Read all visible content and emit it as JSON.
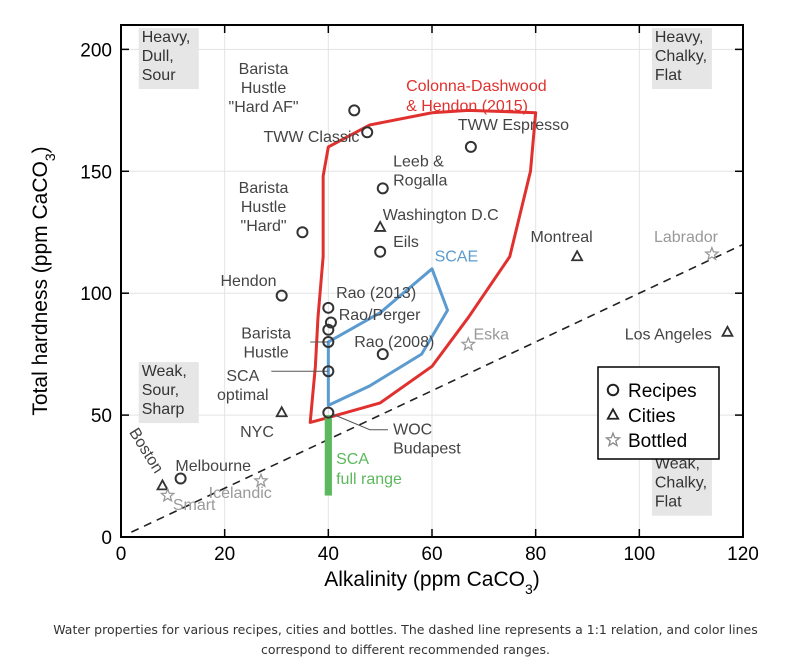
{
  "chart_data": {
    "type": "scatter",
    "xlabel": "Alkalinity (ppm CaCO",
    "xlabel_sub": "3",
    "xlabel_end": ")",
    "ylabel": "Total hardness (ppm CaCO",
    "ylabel_sub": "3",
    "ylabel_end": ")",
    "xlim": [
      0,
      120
    ],
    "ylim": [
      0,
      210
    ],
    "xticks": [
      0,
      20,
      40,
      60,
      80,
      100,
      120
    ],
    "yticks": [
      0,
      50,
      100,
      150,
      200
    ],
    "grid": true,
    "legend_position": "bottom-right",
    "legend": [
      {
        "label": "Recipes",
        "marker": "circle"
      },
      {
        "label": "Cities",
        "marker": "triangle"
      },
      {
        "label": "Bottled",
        "marker": "star"
      }
    ],
    "corner_labels": [
      {
        "lines": [
          "Heavy,",
          "Dull,",
          "Sour"
        ],
        "x": 4,
        "y": 203
      },
      {
        "lines": [
          "Heavy,",
          "Chalky,",
          "Flat"
        ],
        "x": 103,
        "y": 203
      },
      {
        "lines": [
          "Weak,",
          "Sour,",
          "Sharp"
        ],
        "x": 4,
        "y": 66
      },
      {
        "lines": [
          "Weak,",
          "Chalky,",
          "Flat"
        ],
        "x": 103,
        "y": 28
      }
    ],
    "reference_line": {
      "label": "1:1",
      "points": [
        [
          2,
          2
        ],
        [
          120,
          120
        ]
      ]
    },
    "regions": [
      {
        "name": "Colonna-Dashwood & Hendon (2015)",
        "color": "#e0312f",
        "label_lines": [
          "Colonna-Dashwood",
          "& Hendon (2015)"
        ],
        "label_x": 55,
        "label_y": 183,
        "points": [
          [
            36.5,
            47
          ],
          [
            40,
            49
          ],
          [
            50,
            55
          ],
          [
            60,
            70
          ],
          [
            67,
            90
          ],
          [
            75,
            115
          ],
          [
            79,
            150
          ],
          [
            80,
            174
          ],
          [
            67,
            175
          ],
          [
            60,
            174
          ],
          [
            48,
            169
          ],
          [
            40,
            160
          ],
          [
            39,
            148
          ],
          [
            39,
            130
          ],
          [
            39,
            115
          ],
          [
            38,
            90
          ],
          [
            37.5,
            70
          ]
        ]
      },
      {
        "name": "SCAE",
        "color": "#5b9bcf",
        "label_lines": [
          "SCAE"
        ],
        "label_x": 60.5,
        "label_y": 113,
        "points": [
          [
            40,
            56
          ],
          [
            40,
            80
          ],
          [
            50,
            92
          ],
          [
            60,
            110
          ],
          [
            63,
            93
          ],
          [
            58,
            75
          ],
          [
            48,
            62
          ],
          [
            40,
            54
          ]
        ]
      },
      {
        "name": "SCA full range",
        "color": "#5cb85c",
        "label_lines": [
          "SCA",
          "full range"
        ],
        "label_x": 41.5,
        "label_y": 30,
        "x_range": [
          39.5,
          40.5
        ],
        "y_range": [
          17,
          50
        ]
      }
    ],
    "series": [
      {
        "name": "Recipes",
        "marker": "circle",
        "color": "#333333",
        "points": [
          {
            "label": "Barista Hustle \"Hard AF\"",
            "label_lines": [
              "Barista",
              "Hustle",
              "\"Hard AF\""
            ],
            "x": 45,
            "y": 175,
            "lx": 27.5,
            "ly": 190,
            "anchor": "middle"
          },
          {
            "label": "TWW Classic",
            "label_lines": [
              "TWW Classic"
            ],
            "x": 47.5,
            "y": 166,
            "lx": 46,
            "ly": 162,
            "anchor": "end"
          },
          {
            "label": "TWW Espresso",
            "label_lines": [
              "TWW Espresso"
            ],
            "x": 67.5,
            "y": 160,
            "lx": 65,
            "ly": 167,
            "anchor": "start"
          },
          {
            "label": "Leeb & Rogalla",
            "label_lines": [
              "Leeb &",
              "Rogalla"
            ],
            "x": 50.5,
            "y": 143,
            "lx": 52.5,
            "ly": 152,
            "anchor": "start"
          },
          {
            "label": "Barista Hustle \"Hard\"",
            "label_lines": [
              "Barista",
              "Hustle",
              "\"Hard\""
            ],
            "x": 35,
            "y": 125,
            "lx": 27.5,
            "ly": 141,
            "anchor": "middle"
          },
          {
            "label": "Eils",
            "label_lines": [
              "Eils"
            ],
            "x": 50,
            "y": 117,
            "lx": 52.5,
            "ly": 119,
            "anchor": "start"
          },
          {
            "label": "Hendon",
            "label_lines": [
              "Hendon"
            ],
            "x": 31,
            "y": 99,
            "lx": 30,
            "ly": 103,
            "anchor": "end"
          },
          {
            "label": "Rao (2013)",
            "label_lines": [
              "Rao (2013)"
            ],
            "x": 40,
            "y": 94,
            "lx": 41.5,
            "ly": 98,
            "anchor": "start"
          },
          {
            "label": "Rao/Perger",
            "label_lines": [
              "Rao/Perger"
            ],
            "x": 40.5,
            "y": 88,
            "lx": 42,
            "ly": 89,
            "anchor": "start"
          },
          {
            "label": "Rao (2008)",
            "label_lines": [
              "Rao (2008)"
            ],
            "x": 50.5,
            "y": 75,
            "lx": 45,
            "ly": 78,
            "anchor": "start"
          },
          {
            "label": "Barista Hustle",
            "label_lines": [
              "Barista",
              "Hustle"
            ],
            "x": 40,
            "y": 80,
            "lx": 28,
            "ly": 81.5,
            "anchor": "middle"
          },
          {
            "label": "",
            "label_lines": [],
            "x": 40,
            "y": 85,
            "lx": 0,
            "ly": 0,
            "anchor": "start"
          },
          {
            "label": "SCA optimal",
            "label_lines": [
              "SCA",
              "optimal"
            ],
            "x": 40,
            "y": 68,
            "lx": 23.5,
            "ly": 64,
            "anchor": "middle"
          },
          {
            "label": "WOC Budapest",
            "label_lines": [
              "WOC",
              "Budapest"
            ],
            "x": 40,
            "y": 51,
            "lx": 52.5,
            "ly": 42,
            "anchor": "start"
          },
          {
            "label": "Melbourne",
            "label_lines": [
              "Melbourne"
            ],
            "x": 11.5,
            "y": 24,
            "lx": 10.5,
            "ly": 27,
            "anchor": "start"
          }
        ]
      },
      {
        "name": "Cities",
        "marker": "triangle",
        "color": "#333333",
        "points": [
          {
            "label": "Washington D.C",
            "label_lines": [
              "Washington D.C"
            ],
            "x": 50,
            "y": 127,
            "lx": 50.5,
            "ly": 130,
            "anchor": "start"
          },
          {
            "label": "Montreal",
            "label_lines": [
              "Montreal"
            ],
            "x": 88,
            "y": 115,
            "lx": 85,
            "ly": 121,
            "anchor": "middle"
          },
          {
            "label": "Los Angeles",
            "label_lines": [
              "Los Angeles"
            ],
            "x": 117,
            "y": 84,
            "lx": 114,
            "ly": 81,
            "anchor": "end"
          },
          {
            "label": "NYC",
            "label_lines": [
              "NYC"
            ],
            "x": 31,
            "y": 51,
            "lx": 29.5,
            "ly": 41,
            "anchor": "end"
          },
          {
            "label": "Boston",
            "label_lines": [
              "Boston"
            ],
            "x": 8,
            "y": 21,
            "lx": 1.5,
            "ly": 43,
            "anchor": "start",
            "rotate": 58
          }
        ]
      },
      {
        "name": "Bottled",
        "marker": "star",
        "color": "#999999",
        "points": [
          {
            "label": "Labrador",
            "label_lines": [
              "Labrador"
            ],
            "x": 114,
            "y": 116,
            "lx": 109,
            "ly": 121,
            "anchor": "middle"
          },
          {
            "label": "Eska",
            "label_lines": [
              "Eska"
            ],
            "x": 67,
            "y": 79,
            "lx": 68,
            "ly": 81,
            "anchor": "start"
          },
          {
            "label": "Icelandic",
            "label_lines": [
              "Icelandic"
            ],
            "x": 27,
            "y": 23,
            "lx": 23,
            "ly": 16,
            "anchor": "middle"
          },
          {
            "label": "Smart",
            "label_lines": [
              "Smart"
            ],
            "x": 9,
            "y": 17,
            "lx": 10,
            "ly": 11,
            "anchor": "start"
          }
        ]
      }
    ]
  },
  "caption_line1": "Water properties for various recipes, cities and bottles. The dashed line represents a 1:1 relation, and color lines",
  "caption_line2": "correspond to different recommended ranges."
}
